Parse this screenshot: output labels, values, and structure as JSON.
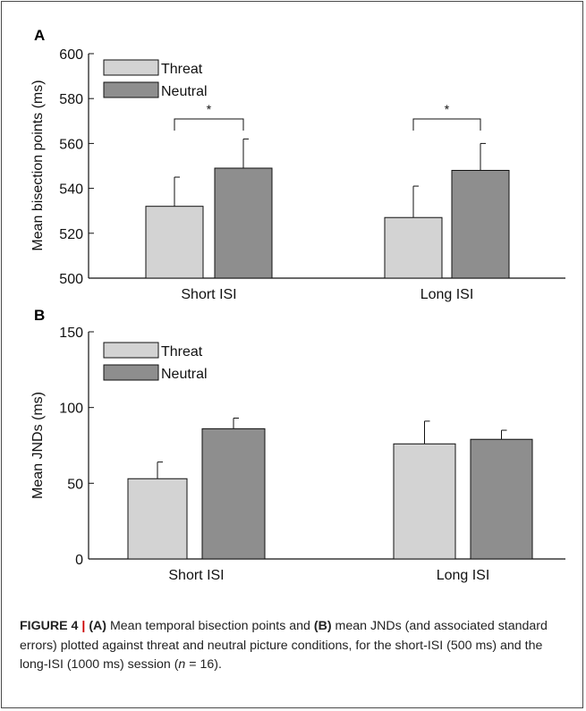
{
  "chart_data": [
    {
      "panel": "A",
      "type": "bar",
      "ylabel": "Mean bisection points (ms)",
      "ylim": [
        500,
        600
      ],
      "yticks": [
        "500",
        "520",
        "540",
        "560",
        "580",
        "600"
      ],
      "categories": [
        "Short ISI",
        "Long ISI"
      ],
      "series": [
        {
          "name": "Threat",
          "values": [
            532,
            527
          ],
          "errors": [
            13,
            14
          ],
          "color": "#d3d3d3"
        },
        {
          "name": "Neutral",
          "values": [
            549,
            548
          ],
          "errors": [
            13,
            12
          ],
          "color": "#8e8e8e"
        }
      ],
      "annotations": [
        {
          "category": "Short ISI",
          "text": "*"
        },
        {
          "category": "Long ISI",
          "text": "*"
        }
      ],
      "legend": "top-left"
    },
    {
      "panel": "B",
      "type": "bar",
      "ylabel": "Mean JNDs (ms)",
      "ylim": [
        0,
        150
      ],
      "yticks": [
        "0",
        "50",
        "100",
        "150"
      ],
      "categories": [
        "Short ISI",
        "Long ISI"
      ],
      "series": [
        {
          "name": "Threat",
          "values": [
            53,
            76
          ],
          "errors": [
            11,
            15
          ],
          "color": "#d3d3d3"
        },
        {
          "name": "Neutral",
          "values": [
            86,
            79
          ],
          "errors": [
            7,
            6
          ],
          "color": "#8e8e8e"
        }
      ],
      "legend": "top-left"
    }
  ],
  "caption": {
    "figure": "FIGURE 4",
    "sep": "|",
    "a": "(A)",
    "t1": " Mean temporal bisection points and ",
    "b": "(B)",
    "t2": " mean JNDs (and associated standard errors) plotted against threat and neutral picture conditions, for the short-ISI (500 ms) and the long-ISI (1000 ms) session (",
    "n": "n",
    "t3": " = 16)."
  }
}
